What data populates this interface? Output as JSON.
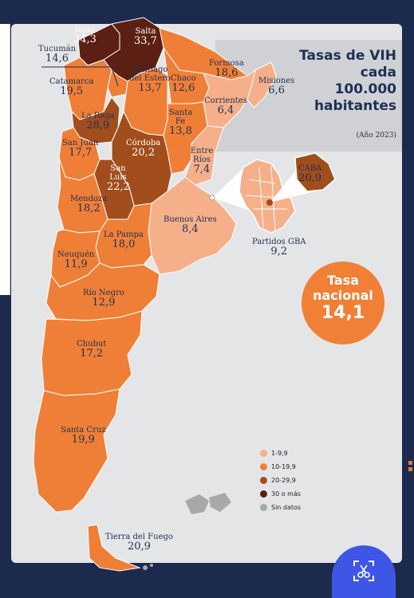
{
  "title": {
    "line1": "Tasas de VIH",
    "line2": "cada",
    "line3": "100.000",
    "line4": "habitantes",
    "year": "(Año 2023)"
  },
  "colors": {
    "low": "#f5b08a",
    "mid": "#ef7f36",
    "high": "#a14d1c",
    "top": "#5b2013",
    "nodata": "#a8a8a8",
    "title": "#1f2f55",
    "background": "#1c2a4e"
  },
  "national": {
    "line1": "Tasa",
    "line2": "nacional",
    "value": "14,1"
  },
  "provinces": [
    {
      "name": "Jujuy",
      "value": "34,3"
    },
    {
      "name": "Salta",
      "value": "33,7"
    },
    {
      "name": "Tucumán",
      "value": "14,6"
    },
    {
      "name": "Formosa",
      "value": "18,6"
    },
    {
      "name": "Misiones",
      "value": "6,6"
    },
    {
      "name": "Catamarca",
      "value": "19,5"
    },
    {
      "name": "Chaco",
      "value": "12,6"
    },
    {
      "name": "Santiago del Estero",
      "value": "13,7"
    },
    {
      "name": "Corrientes",
      "value": "6,4"
    },
    {
      "name": "La Rioja",
      "value": "28,9"
    },
    {
      "name": "Santa Fe",
      "value": "13,8"
    },
    {
      "name": "San Juan",
      "value": "17,7"
    },
    {
      "name": "Córdoba",
      "value": "20,2"
    },
    {
      "name": "Entre Ríos",
      "value": "7,4"
    },
    {
      "name": "San Luis",
      "value": "22,2"
    },
    {
      "name": "CABA",
      "value": "20,9"
    },
    {
      "name": "Mendoza",
      "value": "18,2"
    },
    {
      "name": "Buenos Aires",
      "value": "8,4"
    },
    {
      "name": "La Pampa",
      "value": "18,0"
    },
    {
      "name": "Partidos GBA",
      "value": "9,2"
    },
    {
      "name": "Neuquén",
      "value": "11,9"
    },
    {
      "name": "Río Negro",
      "value": "12,9"
    },
    {
      "name": "Chubut",
      "value": "17,2"
    },
    {
      "name": "Santa Cruz",
      "value": "19,9"
    },
    {
      "name": "Tierra del Fuego",
      "value": "20,9"
    }
  ],
  "legend": [
    {
      "label": "1-9,9",
      "color": "#f5b08a"
    },
    {
      "label": "10-19,9",
      "color": "#ef7f36"
    },
    {
      "label": "20-29,9",
      "color": "#a14d1c"
    },
    {
      "label": "30 o más",
      "color": "#5b2013"
    },
    {
      "label": "Sin datos",
      "color": "#a8a8a8"
    }
  ],
  "icons": {
    "fab": "crop-scissors-icon"
  }
}
